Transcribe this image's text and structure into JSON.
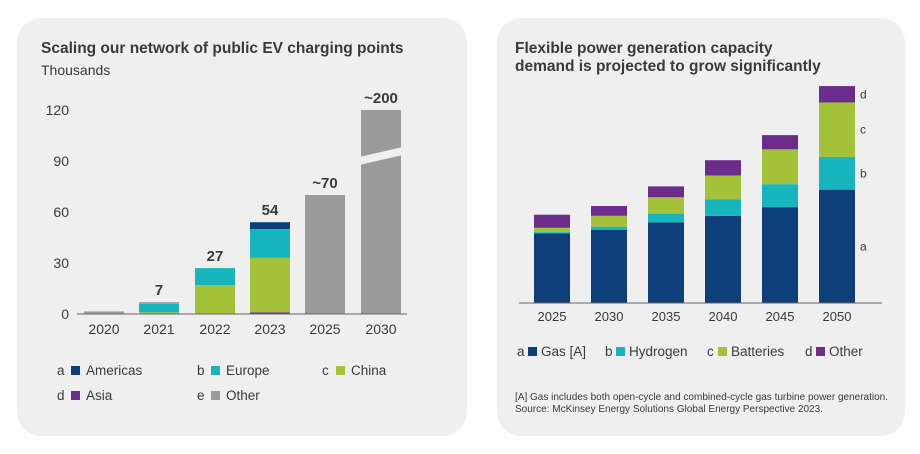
{
  "left": {
    "title": "Scaling our network of public EV charging points",
    "subtitle": "Thousands",
    "legend": [
      {
        "letter": "a",
        "label": "Americas",
        "color": "#0f3f7a"
      },
      {
        "letter": "b",
        "label": "Europe",
        "color": "#17b5bd"
      },
      {
        "letter": "c",
        "label": "China",
        "color": "#a4c13a"
      },
      {
        "letter": "d",
        "label": "Asia",
        "color": "#6b2c8c"
      },
      {
        "letter": "e",
        "label": "Other",
        "color": "#9a9a9a"
      }
    ]
  },
  "right": {
    "title_line1": "Flexible power generation capacity",
    "title_line2": "demand is projected to grow significantly",
    "legend": [
      {
        "letter": "a",
        "label": "Gas [A]",
        "color": "#0f3f7a"
      },
      {
        "letter": "b",
        "label": "Hydrogen",
        "color": "#17b5bd"
      },
      {
        "letter": "c",
        "label": "Batteries",
        "color": "#a4c13a"
      },
      {
        "letter": "d",
        "label": "Other",
        "color": "#6b2c8c"
      }
    ],
    "footnote_line1": "[A] Gas includes both open-cycle and combined-cycle gas turbine power generation.",
    "footnote_line2": "Source: McKinsey Energy Solutions Global Energy Perspective 2023."
  },
  "chart_data": [
    {
      "type": "bar",
      "title": "Scaling our network of public EV charging points",
      "ylabel": "Thousands",
      "ylim": [
        0,
        120
      ],
      "yticks": [
        "0",
        "30",
        "60",
        "90",
        "120"
      ],
      "categories": [
        "2020",
        "2021",
        "2022",
        "2023",
        "2025",
        "2030"
      ],
      "totals_labels": [
        "",
        "7",
        "27",
        "54",
        "~70",
        "~200"
      ],
      "axis_break": "2030 bar is truncated with a break mark",
      "series": [
        {
          "name": "Asia",
          "color": "#6b2c8c",
          "values": [
            0,
            0,
            0,
            1,
            0,
            0
          ]
        },
        {
          "name": "China",
          "color": "#a4c13a",
          "values": [
            0,
            1,
            17,
            32,
            0,
            0
          ]
        },
        {
          "name": "Europe",
          "color": "#17b5bd",
          "values": [
            0.5,
            5,
            10,
            17,
            0,
            0
          ]
        },
        {
          "name": "Americas",
          "color": "#0f3f7a",
          "values": [
            0,
            0,
            0,
            4,
            0,
            0
          ]
        },
        {
          "name": "Other",
          "color": "#9a9a9a",
          "values": [
            1,
            1,
            0,
            0,
            70,
            120
          ]
        }
      ]
    },
    {
      "type": "bar",
      "title": "Flexible power generation capacity demand is projected to grow significantly",
      "categories": [
        "2025",
        "2030",
        "2035",
        "2040",
        "2045",
        "2050"
      ],
      "ylim": [
        0,
        100
      ],
      "segment_labels": [
        "a",
        "b",
        "c",
        "d"
      ],
      "series": [
        {
          "name": "Gas [A]",
          "color": "#0f3f7a",
          "values": [
            32,
            33.5,
            37,
            40,
            44,
            52
          ]
        },
        {
          "name": "Hydrogen",
          "color": "#17b5bd",
          "values": [
            0.5,
            1.5,
            4,
            7.5,
            10.5,
            15
          ]
        },
        {
          "name": "Batteries",
          "color": "#a4c13a",
          "values": [
            2,
            5,
            7.5,
            11,
            16,
            25
          ]
        },
        {
          "name": "Other",
          "color": "#6b2c8c",
          "values": [
            6,
            4.5,
            5,
            7,
            6.5,
            7.5
          ]
        }
      ]
    }
  ]
}
